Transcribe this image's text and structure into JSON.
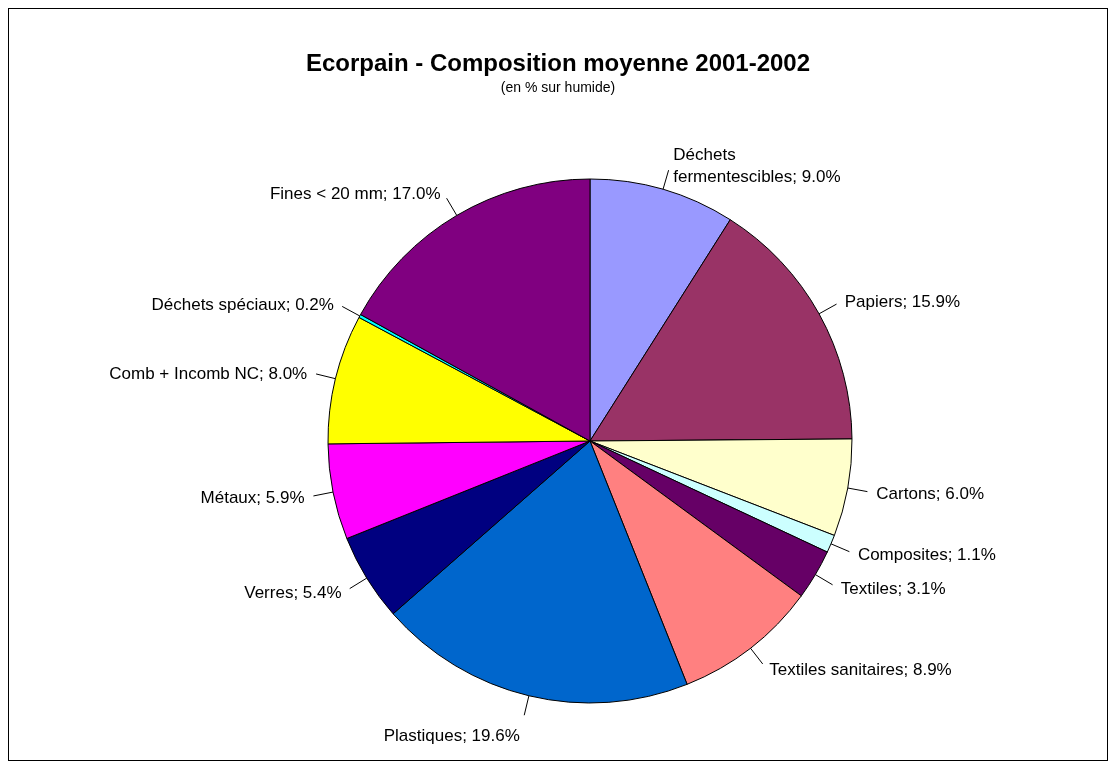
{
  "chart_data": {
    "type": "pie",
    "title": "Ecorpain - Composition moyenne 2001-2002",
    "subtitle": "(en % sur humide)",
    "categories": [
      "Déchets fermentescibles",
      "Papiers",
      "Cartons",
      "Composites",
      "Textiles",
      "Textiles sanitaires",
      "Plastiques",
      "Verres",
      "Métaux",
      "Comb + Incomb NC",
      "Déchets spéciaux",
      "Fines < 20 mm"
    ],
    "values": [
      9.0,
      15.9,
      6.0,
      1.1,
      3.1,
      8.9,
      19.6,
      5.4,
      5.9,
      8.0,
      0.2,
      17.0
    ],
    "value_labels": [
      "9.0%",
      "15.9%",
      "6.0%",
      "1.1%",
      "3.1%",
      "8.9%",
      "19.6%",
      "5.4%",
      "5.9%",
      "8.0%",
      "0.2%",
      "17.0%"
    ],
    "colors": [
      "#9999ff",
      "#993366",
      "#ffffcc",
      "#ccffff",
      "#660066",
      "#ff8080",
      "#0066cc",
      "#000080",
      "#ff00ff",
      "#ffff00",
      "#00ffff",
      "#800080"
    ],
    "legend": false
  }
}
